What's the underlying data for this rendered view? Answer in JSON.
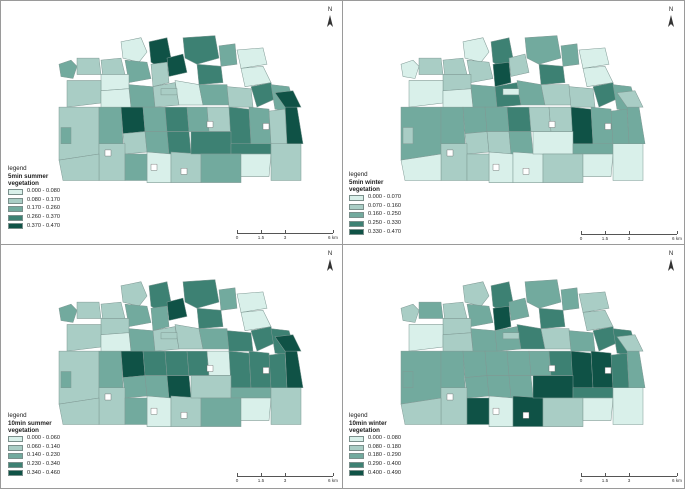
{
  "colors": {
    "c1": "#d9f0ea",
    "c2": "#a9cdc5",
    "c3": "#72aa9e",
    "c4": "#3d8173",
    "c5": "#0f5246",
    "outline": "#7f9994",
    "frame": "#9a9a9a"
  },
  "north_label": "N",
  "scale_labels": [
    "0",
    "1.5",
    "3",
    "6 km"
  ],
  "panels": [
    {
      "id": "5min-summer",
      "legend_title": "legend",
      "legend_subtitle": "5min summer",
      "legend_variable": "vegetation",
      "classes": [
        "0.000 - 0.080",
        "0.080 - 0.170",
        "0.170 - 0.260",
        "0.260 - 0.370",
        "0.370 - 0.470"
      ],
      "zones": [
        3,
        2,
        1,
        5,
        4,
        3,
        2,
        1,
        5,
        3,
        4,
        2,
        1,
        1,
        2,
        1,
        3,
        2,
        1,
        3,
        2,
        4,
        3,
        2,
        3,
        5,
        3,
        4,
        3,
        2,
        4,
        3,
        2,
        2,
        3,
        4,
        5,
        5,
        2,
        1,
        3,
        2,
        4,
        4,
        3,
        1,
        2,
        2,
        2,
        3
      ]
    },
    {
      "id": "5min-winter",
      "legend_title": "legend",
      "legend_subtitle": "5min winter",
      "legend_variable": "vegetation",
      "classes": [
        "0.000 - 0.070",
        "0.070 - 0.160",
        "0.160 - 0.250",
        "0.250 - 0.330",
        "0.330 - 0.470"
      ],
      "zones": [
        1,
        2,
        1,
        4,
        3,
        3,
        2,
        1,
        2,
        2,
        4,
        5,
        2,
        1,
        1,
        1,
        3,
        4,
        3,
        2,
        2,
        4,
        3,
        3,
        3,
        3,
        3,
        4,
        2,
        2,
        5,
        3,
        3,
        2,
        2,
        3,
        3,
        2,
        2,
        1,
        2,
        1,
        1,
        3,
        2,
        1,
        1,
        1,
        1,
        2
      ]
    },
    {
      "id": "10min-summer",
      "legend_title": "legend",
      "legend_subtitle": "10min summer",
      "legend_variable": "vegetation",
      "classes": [
        "0.000 - 0.060",
        "0.060 - 0.140",
        "0.140 - 0.230",
        "0.230 - 0.340",
        "0.340 - 0.460"
      ],
      "zones": [
        3,
        2,
        2,
        4,
        4,
        3,
        2,
        1,
        5,
        3,
        4,
        3,
        2,
        1,
        2,
        1,
        3,
        2,
        2,
        3,
        4,
        4,
        4,
        2,
        3,
        5,
        4,
        4,
        4,
        1,
        4,
        4,
        4,
        3,
        3,
        5,
        5,
        5,
        2,
        1,
        3,
        2,
        2,
        3,
        3,
        1,
        2,
        2,
        2,
        3
      ]
    },
    {
      "id": "10min-winter",
      "legend_title": "legend",
      "legend_subtitle": "10min winter",
      "legend_variable": "vegetation",
      "classes": [
        "0.000 - 0.080",
        "0.080 - 0.180",
        "0.180 - 0.290",
        "0.290 - 0.400",
        "0.400 - 0.490"
      ],
      "zones": [
        2,
        3,
        2,
        4,
        3,
        3,
        2,
        2,
        3,
        3,
        4,
        5,
        2,
        2,
        1,
        2,
        3,
        3,
        4,
        2,
        3,
        4,
        4,
        3,
        3,
        3,
        3,
        3,
        3,
        4,
        5,
        5,
        4,
        3,
        3,
        3,
        3,
        2,
        2,
        1,
        5,
        5,
        5,
        4,
        2,
        1,
        1,
        2,
        2,
        3
      ]
    }
  ]
}
